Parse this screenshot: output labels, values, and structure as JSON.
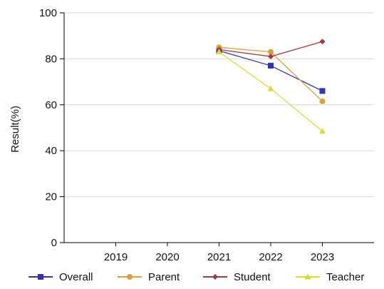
{
  "chart_data": {
    "type": "line",
    "title": "",
    "xlabel": "",
    "ylabel": "Result(%)",
    "ylim": [
      0,
      100
    ],
    "yticks": [
      0,
      20,
      40,
      60,
      80,
      100
    ],
    "categories": [
      "2019",
      "2020",
      "2021",
      "2022",
      "2023"
    ],
    "grid": {
      "horizontal": true,
      "vertical": false
    },
    "legend_position": "bottom",
    "series": [
      {
        "name": "Overall",
        "color": "#3333aa",
        "marker": "square",
        "values": [
          null,
          null,
          83.5,
          77,
          66
        ]
      },
      {
        "name": "Parent",
        "color": "#d9a040",
        "marker": "circle",
        "values": [
          null,
          null,
          85,
          83,
          61.5
        ]
      },
      {
        "name": "Student",
        "color": "#a33a3a",
        "marker": "diamond",
        "values": [
          null,
          null,
          84,
          81,
          87.5
        ]
      },
      {
        "name": "Teacher",
        "color": "#d9dd33",
        "marker": "triangle",
        "values": [
          null,
          null,
          83,
          67,
          48.5
        ]
      }
    ]
  }
}
